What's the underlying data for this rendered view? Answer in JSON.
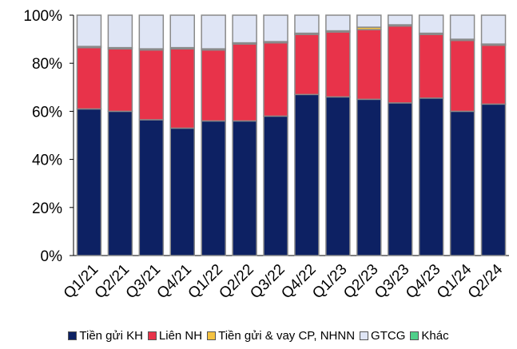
{
  "chart_data": {
    "type": "stacked_bar_100",
    "categories": [
      "Q1/21",
      "Q2/21",
      "Q3/21",
      "Q4/21",
      "Q1/22",
      "Q2/22",
      "Q3/22",
      "Q4/22",
      "Q1/23",
      "Q2/23",
      "Q3/23",
      "Q4/23",
      "Q1/24",
      "Q2/24"
    ],
    "series": [
      {
        "name": "Tiền gửi KH",
        "color": "#0d2163",
        "values": [
          61,
          60,
          56.5,
          53,
          56,
          56,
          58,
          67,
          66,
          65,
          63.5,
          65.5,
          60,
          63
        ]
      },
      {
        "name": "Liên NH",
        "color": "#e8334a",
        "values": [
          25.5,
          26,
          29,
          33,
          29.5,
          32,
          30.5,
          25,
          27,
          29,
          32,
          26.5,
          29.5,
          24.5
        ]
      },
      {
        "name": "Tiền gửi & vay CP, NHNN",
        "color": "#f5c342",
        "values": [
          0.5,
          0.5,
          0.5,
          0.5,
          0.5,
          0.5,
          0.5,
          0.5,
          0.5,
          1,
          0.5,
          0.5,
          0.5,
          0.5
        ]
      },
      {
        "name": "GTCG",
        "color": "#dfe5f5",
        "values": [
          13,
          13.5,
          14,
          13.5,
          14,
          11.5,
          11,
          7.5,
          6.5,
          5,
          4,
          7.5,
          10,
          12
        ]
      },
      {
        "name": "Khác",
        "color": "#4fd08a",
        "values": [
          0,
          0,
          0,
          0,
          0,
          0,
          0,
          0,
          0,
          0,
          0,
          0,
          0,
          0
        ]
      }
    ],
    "ylim": [
      0,
      100
    ],
    "yticks": [
      {
        "value": 0,
        "label": "0%"
      },
      {
        "value": 20,
        "label": "20%"
      },
      {
        "value": 40,
        "label": "40%"
      },
      {
        "value": 60,
        "label": "60%"
      },
      {
        "value": 80,
        "label": "80%"
      },
      {
        "value": 100,
        "label": "100%"
      }
    ]
  }
}
